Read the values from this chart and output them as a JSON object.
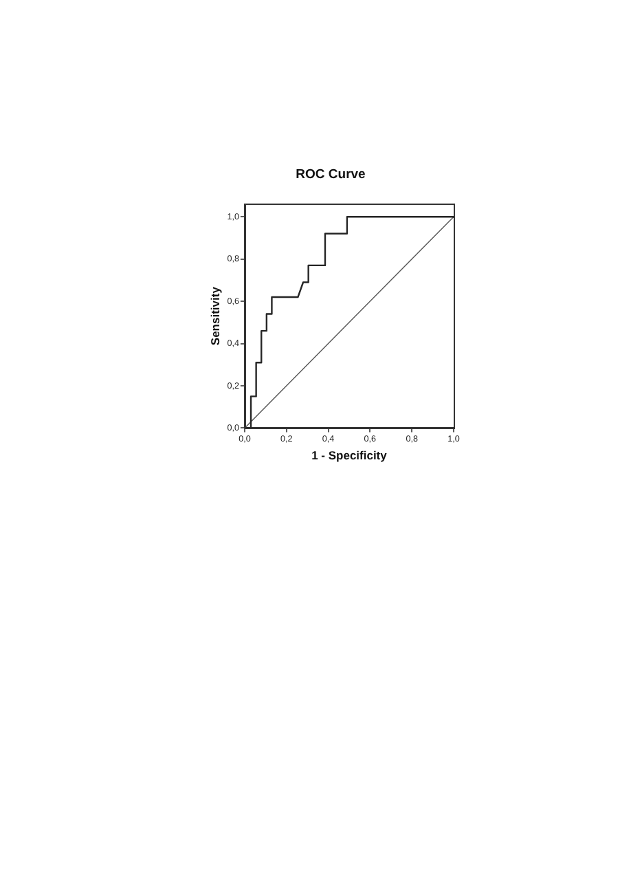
{
  "chart_data": {
    "type": "line",
    "title": "ROC Curve",
    "xlabel": "1 - Specificity",
    "ylabel": "Sensitivity",
    "xlim": [
      0,
      1
    ],
    "ylim": [
      0,
      1.06
    ],
    "xticks": [
      {
        "value": 0,
        "label": "0,0"
      },
      {
        "value": 0.2,
        "label": "0,2"
      },
      {
        "value": 0.4,
        "label": "0,4"
      },
      {
        "value": 0.6,
        "label": "0,6"
      },
      {
        "value": 0.8,
        "label": "0,8"
      },
      {
        "value": 1,
        "label": "1,0"
      }
    ],
    "yticks": [
      {
        "value": 0,
        "label": "0,0"
      },
      {
        "value": 0.2,
        "label": "0,2"
      },
      {
        "value": 0.4,
        "label": "0,4"
      },
      {
        "value": 0.6,
        "label": "0,6"
      },
      {
        "value": 0.8,
        "label": "0,8"
      },
      {
        "value": 1,
        "label": "1,0"
      }
    ],
    "series": [
      {
        "color": "#262626",
        "x": [
          0,
          0.03,
          0.03,
          0.055,
          0.055,
          0.08,
          0.08,
          0.105,
          0.105,
          0.13,
          0.13,
          0.255,
          0.28,
          0.305,
          0.305,
          0.385,
          0.385,
          0.49,
          0.49,
          1
        ],
        "values": [
          0,
          0,
          0.15,
          0.15,
          0.31,
          0.31,
          0.46,
          0.46,
          0.54,
          0.54,
          0.62,
          0.62,
          0.69,
          0.69,
          0.77,
          0.77,
          0.92,
          0.92,
          1,
          1
        ]
      },
      {
        "color": "#555555",
        "x": [
          0,
          1
        ],
        "values": [
          0,
          1
        ]
      }
    ]
  }
}
